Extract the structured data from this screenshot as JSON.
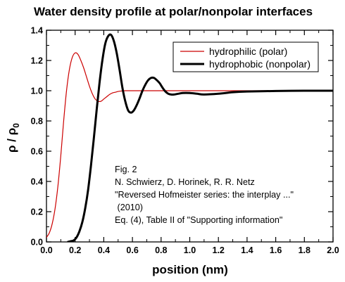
{
  "chart_data": {
    "type": "line",
    "title": "Water density profile at polar/nonpolar interfaces",
    "xlabel": "position (nm)",
    "ylabel_main": "ρ / ρ",
    "ylabel_sub": "0",
    "xlim": [
      0.0,
      2.0
    ],
    "ylim": [
      0.0,
      1.4
    ],
    "x_ticks": [
      "0.0",
      "0.2",
      "0.4",
      "0.6",
      "0.8",
      "1.0",
      "1.2",
      "1.4",
      "1.6",
      "1.8",
      "2.0"
    ],
    "y_ticks": [
      "0.0",
      "0.2",
      "0.4",
      "0.6",
      "0.8",
      "1.0",
      "1.2",
      "1.4"
    ],
    "grid": false,
    "legend_position": "top-right",
    "series": [
      {
        "name": "hydrophilic (polar)",
        "color": "#cc0000",
        "x": [
          0.0,
          0.02,
          0.04,
          0.06,
          0.08,
          0.1,
          0.12,
          0.14,
          0.16,
          0.18,
          0.2,
          0.22,
          0.24,
          0.26,
          0.28,
          0.3,
          0.32,
          0.34,
          0.36,
          0.38,
          0.4,
          0.42,
          0.44,
          0.46,
          0.48,
          0.5,
          0.52,
          0.55,
          0.6,
          0.7,
          0.8,
          1.0,
          1.2,
          1.4,
          1.6,
          1.8,
          2.0
        ],
        "y": [
          0.03,
          0.06,
          0.12,
          0.22,
          0.37,
          0.57,
          0.8,
          1.0,
          1.14,
          1.22,
          1.25,
          1.24,
          1.2,
          1.15,
          1.09,
          1.03,
          0.98,
          0.945,
          0.93,
          0.93,
          0.945,
          0.96,
          0.975,
          0.985,
          0.99,
          0.995,
          0.998,
          1.0,
          1.0,
          1.0,
          1.0,
          1.0,
          1.0,
          1.0,
          1.0,
          1.0,
          1.0
        ]
      },
      {
        "name": "hydrophobic (nonpolar)",
        "color": "#000000",
        "x": [
          0.15,
          0.17,
          0.19,
          0.21,
          0.23,
          0.25,
          0.27,
          0.29,
          0.31,
          0.33,
          0.35,
          0.37,
          0.39,
          0.41,
          0.43,
          0.45,
          0.47,
          0.49,
          0.51,
          0.53,
          0.55,
          0.57,
          0.59,
          0.61,
          0.63,
          0.65,
          0.67,
          0.69,
          0.71,
          0.73,
          0.75,
          0.77,
          0.79,
          0.81,
          0.83,
          0.85,
          0.87,
          0.89,
          0.92,
          0.95,
          1.0,
          1.05,
          1.1,
          1.2,
          1.3,
          1.4,
          1.6,
          1.8,
          2.0
        ],
        "y": [
          0.0,
          0.005,
          0.01,
          0.03,
          0.07,
          0.13,
          0.22,
          0.34,
          0.5,
          0.68,
          0.87,
          1.05,
          1.2,
          1.31,
          1.36,
          1.37,
          1.33,
          1.25,
          1.14,
          1.02,
          0.93,
          0.87,
          0.855,
          0.87,
          0.905,
          0.95,
          1.0,
          1.04,
          1.07,
          1.085,
          1.085,
          1.07,
          1.05,
          1.02,
          0.995,
          0.98,
          0.975,
          0.975,
          0.98,
          0.985,
          0.985,
          0.98,
          0.975,
          0.98,
          0.99,
          0.995,
          0.998,
          1.0,
          1.0
        ]
      }
    ],
    "annotation": [
      "Fig. 2",
      "N. Schwierz, D. Horinek, R. R. Netz",
      "\"Reversed Hofmeister series: the interplay ...\"",
      " (2010)",
      "Eq. (4), Table II of \"Supporting information\""
    ]
  }
}
